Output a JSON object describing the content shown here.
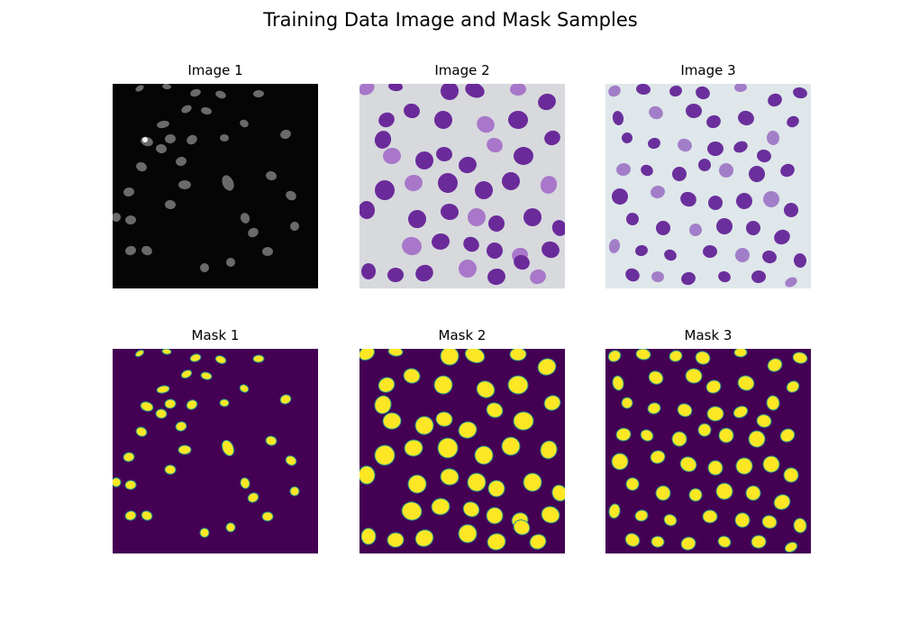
{
  "figure": {
    "title": "Training Data Image and Mask Samples"
  },
  "panels": [
    {
      "title": "Image 1",
      "kind": "fluorescence",
      "bg": "#050505",
      "nucleus": "#6a6a6a"
    },
    {
      "title": "Image 2",
      "kind": "stain",
      "bg": "#d7d9dd",
      "nucleus": "#6b2a9a",
      "light": "#a877c9"
    },
    {
      "title": "Image 3",
      "kind": "stain",
      "bg": "#dfe7ea",
      "nucleus": "#6a2f9c",
      "light": "#a27ec8"
    },
    {
      "title": "Mask 1",
      "kind": "mask",
      "bg": "#440154",
      "fg": "#fde725",
      "edge": "#21918c"
    },
    {
      "title": "Mask 2",
      "kind": "mask",
      "bg": "#440154",
      "fg": "#fde725",
      "edge": "#21918c"
    },
    {
      "title": "Mask 3",
      "kind": "mask",
      "bg": "#440154",
      "fg": "#fde725",
      "edge": "#21918c"
    }
  ]
}
